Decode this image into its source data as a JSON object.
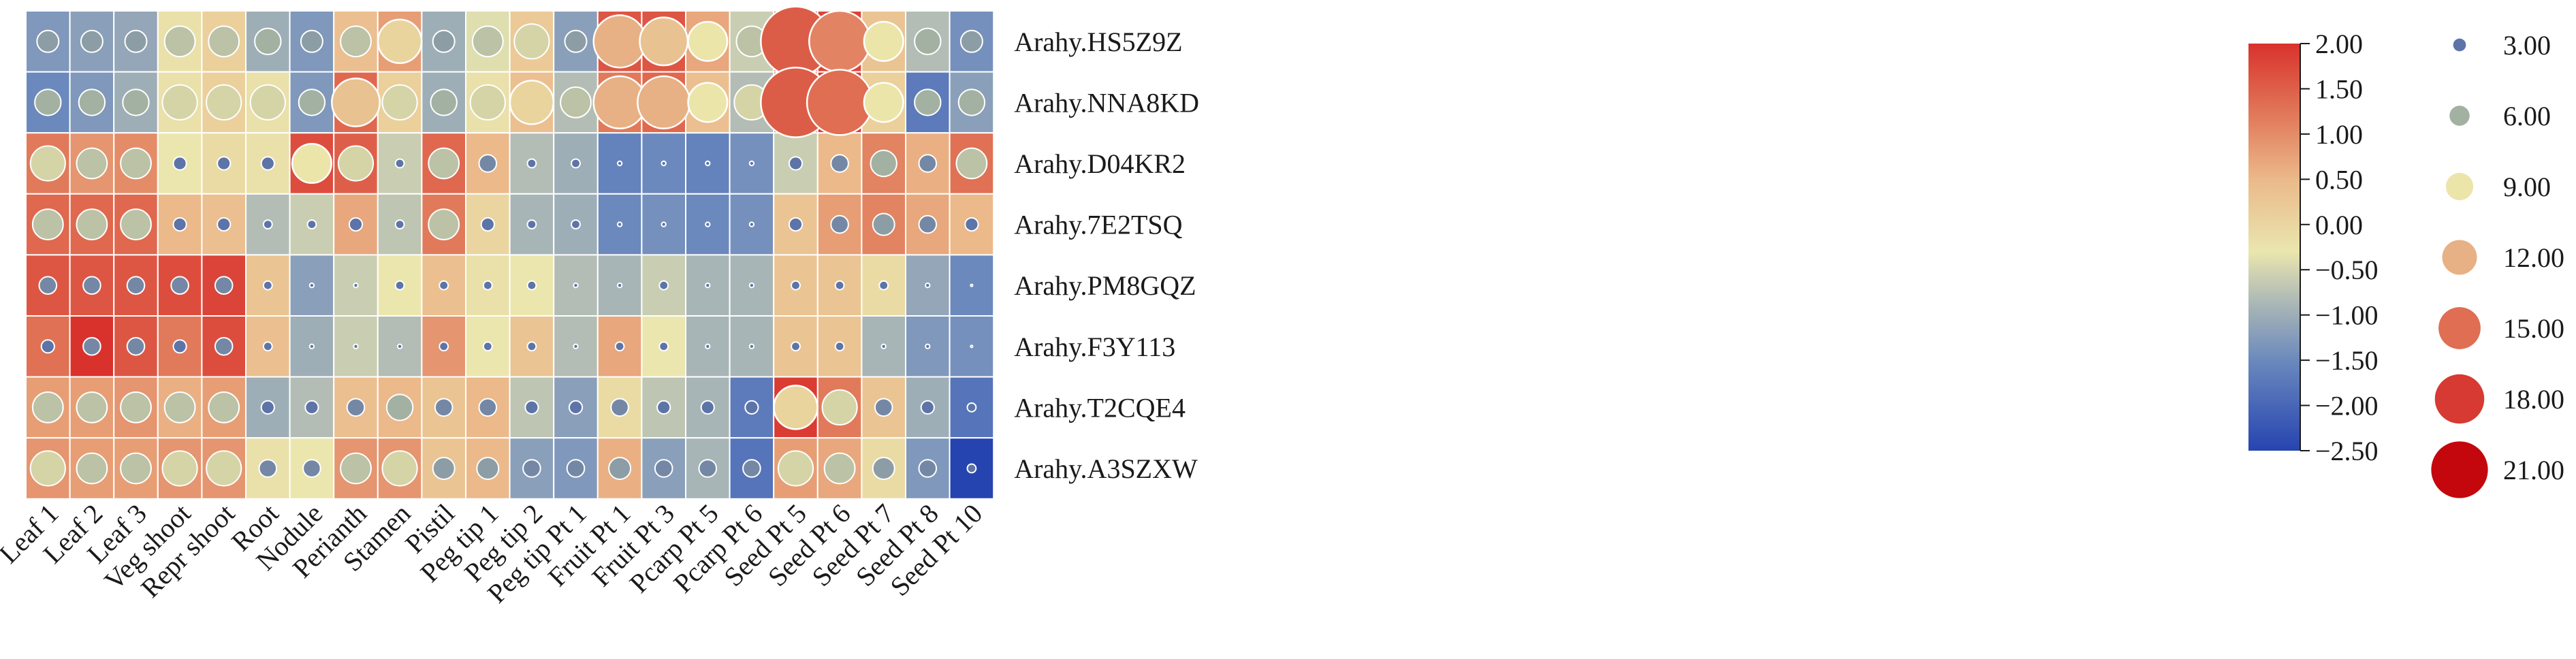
{
  "chart_data": {
    "type": "heatmap",
    "title": "",
    "xlabel": "",
    "ylabel": "",
    "columns": [
      "Leaf 1",
      "Leaf 2",
      "Leaf 3",
      "Veg shoot",
      "Repr shoot",
      "Root",
      "Nodule",
      "Perianth",
      "Stamen",
      "Pistil",
      "Peg tip 1",
      "Peg tip 2",
      "Peg tip Pt 1",
      "Fruit Pt 1",
      "Fruit Pt 3",
      "Pcarp Pt 5",
      "Pcarp Pt 6",
      "Seed Pt 5",
      "Seed Pt 6",
      "Seed Pt 7",
      "Seed Pt 8",
      "Seed Pt 10"
    ],
    "rows": [
      "Arahy.HS5Z9Z",
      "Arahy.NNA8KD",
      "Arahy.D04KR2",
      "Arahy.7E2TSQ",
      "Arahy.PM8GQZ",
      "Arahy.F3Y113",
      "Arahy.T2CQE4",
      "Arahy.A3SZXW"
    ],
    "color_values": [
      [
        -1.3,
        -1.2,
        -1.1,
        -0.2,
        0.1,
        -1.0,
        -1.3,
        0.4,
        0.8,
        -1.0,
        -0.4,
        0.2,
        -1.2,
        1.6,
        1.6,
        0.7,
        -0.6,
        1.9,
        1.8,
        0.3,
        -0.8,
        -1.4
      ],
      [
        -1.5,
        -1.3,
        -1.0,
        -0.2,
        0.1,
        -0.2,
        -1.3,
        1.4,
        0.1,
        -1.0,
        -0.2,
        0.4,
        -0.8,
        1.2,
        1.4,
        0.4,
        -0.8,
        1.9,
        1.9,
        0.1,
        -1.7,
        -1.2
      ],
      [
        1.2,
        0.9,
        1.0,
        -0.3,
        -0.1,
        -0.2,
        1.7,
        1.5,
        -0.6,
        1.4,
        0.5,
        -0.8,
        -1.0,
        -1.6,
        -1.5,
        -1.6,
        -1.4,
        -0.6,
        0.5,
        1.1,
        0.6,
        1.3
      ],
      [
        1.4,
        1.4,
        1.4,
        0.5,
        0.4,
        -0.8,
        -0.6,
        0.7,
        -0.7,
        1.2,
        0.0,
        -0.9,
        -1.0,
        -1.5,
        -1.4,
        -1.5,
        -1.4,
        0.3,
        0.8,
        1.1,
        0.7,
        0.5
      ],
      [
        1.6,
        1.6,
        1.6,
        1.7,
        1.8,
        0.3,
        -1.2,
        -0.6,
        -0.3,
        0.4,
        -0.2,
        -0.3,
        -0.8,
        -0.9,
        -0.6,
        -0.9,
        -0.9,
        0.3,
        0.3,
        -0.1,
        -1.1,
        -1.5
      ],
      [
        1.3,
        2.0,
        1.6,
        1.2,
        1.7,
        0.4,
        -1.0,
        -0.6,
        -0.8,
        0.9,
        -0.3,
        0.3,
        -0.8,
        0.7,
        -0.3,
        -0.9,
        -0.9,
        0.3,
        0.3,
        -0.9,
        -1.3,
        -1.4
      ],
      [
        0.8,
        0.8,
        0.9,
        0.6,
        0.8,
        -1.0,
        -0.8,
        0.4,
        0.5,
        0.3,
        0.5,
        -0.7,
        -1.2,
        -0.1,
        -0.7,
        -0.9,
        -1.7,
        1.9,
        1.2,
        0.3,
        -1.0,
        -1.8
      ],
      [
        0.9,
        0.8,
        0.8,
        0.9,
        0.9,
        -0.2,
        -0.3,
        0.9,
        0.9,
        0.3,
        0.5,
        -1.2,
        -1.3,
        0.6,
        -1.2,
        -0.9,
        -1.8,
        0.8,
        0.7,
        -0.1,
        -1.3,
        -2.5
      ]
    ],
    "size_values": [
      [
        5.0,
        5.0,
        5.0,
        7.0,
        7.0,
        6.0,
        5.0,
        7.0,
        10.0,
        5.0,
        7.0,
        8.0,
        5.0,
        12.0,
        11.0,
        9.0,
        7.0,
        16.0,
        14.0,
        9.0,
        6.0,
        5.0
      ],
      [
        6.0,
        6.0,
        6.0,
        8.0,
        8.0,
        8.0,
        6.0,
        11.0,
        8.0,
        6.0,
        8.0,
        10.0,
        7.0,
        12.0,
        12.0,
        9.0,
        8.0,
        16.0,
        15.0,
        9.0,
        6.0,
        6.0
      ],
      [
        8.0,
        7.0,
        7.0,
        3.0,
        3.0,
        3.0,
        9.0,
        8.0,
        2.0,
        7.0,
        4.0,
        2.0,
        2.0,
        1.0,
        1.0,
        1.0,
        1.0,
        3.0,
        4.0,
        6.0,
        4.0,
        7.0
      ],
      [
        7.0,
        7.0,
        7.0,
        3.0,
        3.0,
        2.0,
        2.0,
        3.0,
        2.0,
        7.0,
        3.0,
        2.0,
        2.0,
        1.0,
        1.0,
        1.0,
        1.0,
        3.0,
        4.0,
        5.0,
        4.0,
        3.0
      ],
      [
        4.0,
        4.0,
        4.0,
        4.0,
        4.0,
        2.0,
        1.0,
        1.0,
        2.0,
        2.0,
        2.0,
        2.0,
        1.0,
        1.0,
        2.0,
        1.0,
        1.0,
        2.0,
        2.0,
        2.0,
        1.0,
        0.5
      ],
      [
        3.0,
        4.0,
        4.0,
        3.0,
        4.0,
        2.0,
        1.0,
        1.0,
        1.0,
        2.0,
        2.0,
        2.0,
        1.0,
        2.0,
        2.0,
        1.0,
        1.0,
        2.0,
        2.0,
        1.0,
        1.0,
        0.5
      ],
      [
        7.0,
        7.0,
        7.0,
        7.0,
        7.0,
        3.0,
        3.0,
        4.0,
        6.0,
        4.0,
        4.0,
        3.0,
        3.0,
        4.0,
        3.0,
        3.0,
        3.0,
        10.0,
        8.0,
        4.0,
        3.0,
        2.0
      ],
      [
        8.0,
        7.0,
        7.0,
        8.0,
        8.0,
        4.0,
        4.0,
        7.0,
        8.0,
        5.0,
        5.0,
        4.0,
        4.0,
        5.0,
        4.0,
        4.0,
        4.0,
        8.0,
        7.0,
        5.0,
        4.0,
        2.0
      ]
    ],
    "color_scale": {
      "min": -2.5,
      "max": 2.0,
      "ticks": [
        "2.00",
        "1.50",
        "1.00",
        "0.50",
        "0.00",
        "−0.50",
        "−1.00",
        "−1.50",
        "−2.00",
        "−2.50"
      ],
      "stops": [
        {
          "value": -2.5,
          "color": "#2644b0"
        },
        {
          "value": -1.5,
          "color": "#6b89bd"
        },
        {
          "value": -0.9,
          "color": "#a8b5b6"
        },
        {
          "value": -0.3,
          "color": "#eae6ae"
        },
        {
          "value": 0.5,
          "color": "#ebb98a"
        },
        {
          "value": 1.2,
          "color": "#e17a5a"
        },
        {
          "value": 2.0,
          "color": "#d9322d"
        }
      ]
    },
    "size_legend": [
      {
        "label": "3.00",
        "value": 3,
        "color": "#5d74a8"
      },
      {
        "label": "6.00",
        "value": 6,
        "color": "#a3b1a3"
      },
      {
        "label": "9.00",
        "value": 9,
        "color": "#ece5a9"
      },
      {
        "label": "12.00",
        "value": 12,
        "color": "#e7b185"
      },
      {
        "label": "15.00",
        "value": 15,
        "color": "#df6e52"
      },
      {
        "label": "18.00",
        "value": 18,
        "color": "#d63a32"
      },
      {
        "label": "21.00",
        "value": 21,
        "color": "#c4070d"
      }
    ]
  }
}
